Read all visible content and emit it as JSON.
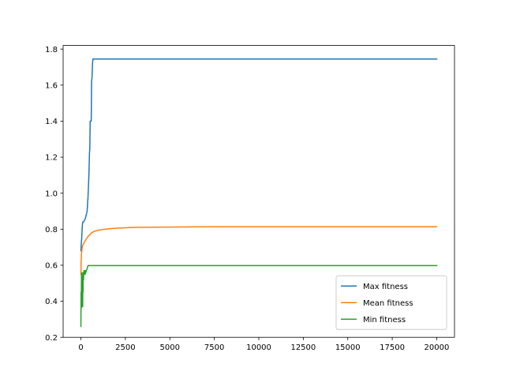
{
  "chart_data": {
    "type": "line",
    "title": "",
    "xlabel": "",
    "ylabel": "",
    "xlim": [
      -1000,
      21000
    ],
    "ylim": [
      0.2,
      1.82
    ],
    "xticks": [
      0,
      2500,
      5000,
      7500,
      10000,
      12500,
      15000,
      17500,
      20000
    ],
    "yticks": [
      0.2,
      0.4,
      0.6,
      0.8,
      1.0,
      1.2,
      1.4,
      1.6,
      1.8
    ],
    "xtick_labels": [
      "0",
      "2500",
      "5000",
      "7500",
      "10000",
      "12500",
      "15000",
      "17500",
      "20000"
    ],
    "ytick_labels": [
      "0.2",
      "0.4",
      "0.6",
      "0.8",
      "1.0",
      "1.2",
      "1.4",
      "1.6",
      "1.8"
    ],
    "grid": false,
    "legend_position": "lower-right",
    "series": [
      {
        "name": "Max fitness",
        "color": "#1f77b4",
        "x": [
          0,
          20,
          50,
          80,
          100,
          150,
          200,
          250,
          300,
          350,
          380,
          400,
          420,
          450,
          480,
          500,
          520,
          550,
          580,
          600,
          630,
          650,
          680,
          700,
          750,
          1000,
          5000,
          10000,
          15000,
          20000
        ],
        "y": [
          0.68,
          0.72,
          0.76,
          0.82,
          0.84,
          0.84,
          0.85,
          0.86,
          0.88,
          0.9,
          0.95,
          0.98,
          1.03,
          1.1,
          1.22,
          1.25,
          1.4,
          1.4,
          1.4,
          1.62,
          1.65,
          1.72,
          1.745,
          1.745,
          1.745,
          1.745,
          1.745,
          1.745,
          1.745,
          1.745
        ]
      },
      {
        "name": "Mean fitness",
        "color": "#ff7f0e",
        "x": [
          0,
          10,
          30,
          60,
          100,
          150,
          200,
          300,
          400,
          500,
          600,
          700,
          800,
          1000,
          1500,
          2000,
          2500,
          3000,
          4000,
          5000,
          6000,
          8000,
          10000,
          15000,
          20000
        ],
        "y": [
          0.55,
          0.62,
          0.66,
          0.69,
          0.71,
          0.72,
          0.73,
          0.745,
          0.76,
          0.77,
          0.78,
          0.785,
          0.79,
          0.795,
          0.802,
          0.806,
          0.808,
          0.81,
          0.811,
          0.812,
          0.813,
          0.814,
          0.814,
          0.814,
          0.814
        ]
      },
      {
        "name": "Min fitness",
        "color": "#2ca02c",
        "x": [
          0,
          10,
          20,
          30,
          45,
          60,
          75,
          90,
          100,
          110,
          120,
          130,
          140,
          150,
          160,
          175,
          190,
          200,
          220,
          240,
          260,
          280,
          300,
          320,
          350,
          400,
          500,
          1000,
          5000,
          10000,
          15000,
          20000
        ],
        "y": [
          0.26,
          0.45,
          0.36,
          0.55,
          0.4,
          0.56,
          0.37,
          0.54,
          0.37,
          0.52,
          0.45,
          0.55,
          0.56,
          0.52,
          0.56,
          0.57,
          0.55,
          0.56,
          0.57,
          0.55,
          0.57,
          0.56,
          0.57,
          0.575,
          0.58,
          0.598,
          0.598,
          0.598,
          0.598,
          0.598,
          0.598,
          0.598
        ]
      }
    ]
  }
}
